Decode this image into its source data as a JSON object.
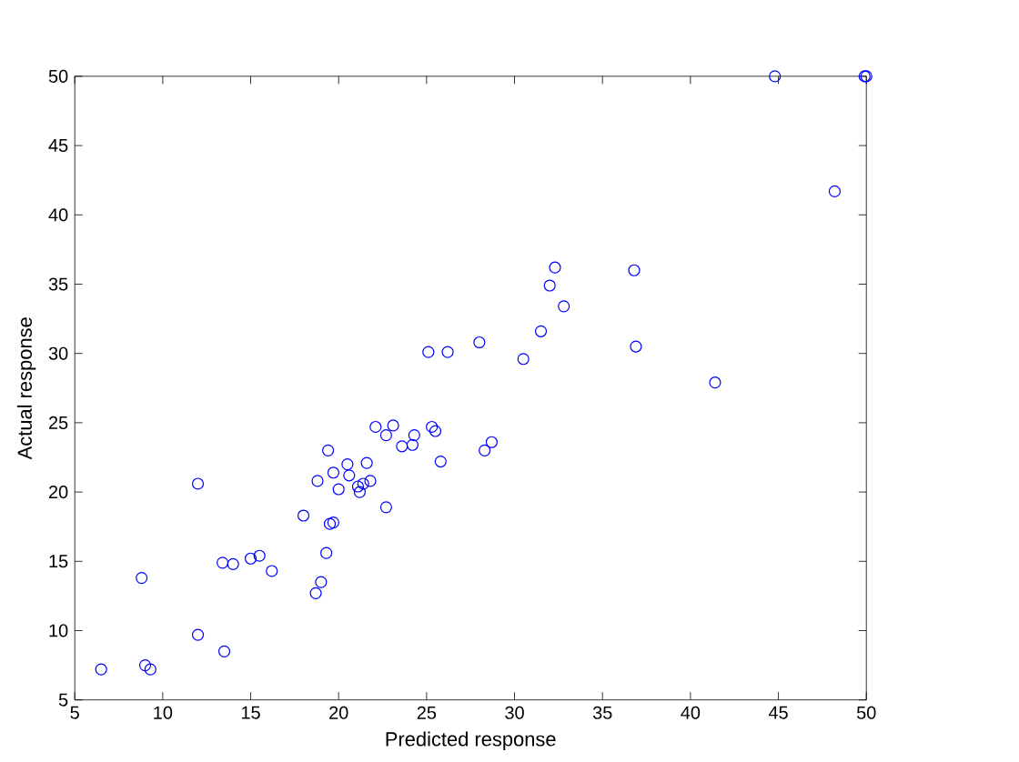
{
  "chart_data": {
    "type": "scatter",
    "xlabel": "Predicted response",
    "ylabel": "Actual response",
    "x": [
      6.5,
      9.0,
      9.3,
      8.8,
      12.0,
      12.0,
      13.5,
      13.4,
      14.0,
      15.0,
      15.5,
      16.2,
      18.0,
      18.7,
      19.0,
      18.8,
      19.3,
      19.5,
      19.7,
      19.4,
      19.7,
      20.0,
      20.5,
      20.6,
      21.1,
      21.2,
      21.4,
      21.6,
      21.8,
      22.1,
      22.7,
      22.7,
      23.1,
      23.6,
      24.2,
      24.3,
      25.1,
      25.3,
      25.5,
      25.8,
      26.2,
      28.0,
      28.3,
      28.7,
      30.5,
      31.5,
      32.0,
      32.3,
      32.8,
      36.8,
      36.9,
      41.4,
      44.8,
      48.2,
      50.0,
      49.9
    ],
    "values": [
      7.2,
      7.5,
      7.2,
      13.8,
      9.7,
      20.6,
      8.5,
      14.9,
      14.8,
      15.2,
      15.4,
      14.3,
      18.3,
      12.7,
      13.5,
      20.8,
      15.6,
      17.7,
      17.8,
      23.0,
      21.4,
      20.2,
      22.0,
      21.2,
      20.4,
      20.0,
      20.6,
      22.1,
      20.8,
      24.7,
      18.9,
      24.1,
      24.8,
      23.3,
      23.4,
      24.1,
      30.1,
      24.7,
      24.4,
      22.2,
      30.1,
      30.8,
      23.0,
      23.6,
      29.6,
      31.6,
      34.9,
      36.2,
      33.4,
      36.0,
      30.5,
      27.9,
      50.0,
      41.7,
      50.0,
      50.0
    ],
    "color": "#0000ff",
    "marker": "circle",
    "xlim": [
      5,
      50
    ],
    "ylim": [
      5,
      50
    ],
    "xticks": [
      5,
      10,
      15,
      20,
      25,
      30,
      35,
      40,
      45,
      50
    ],
    "yticks": [
      5,
      10,
      15,
      20,
      25,
      30,
      35,
      40,
      45,
      50
    ]
  }
}
